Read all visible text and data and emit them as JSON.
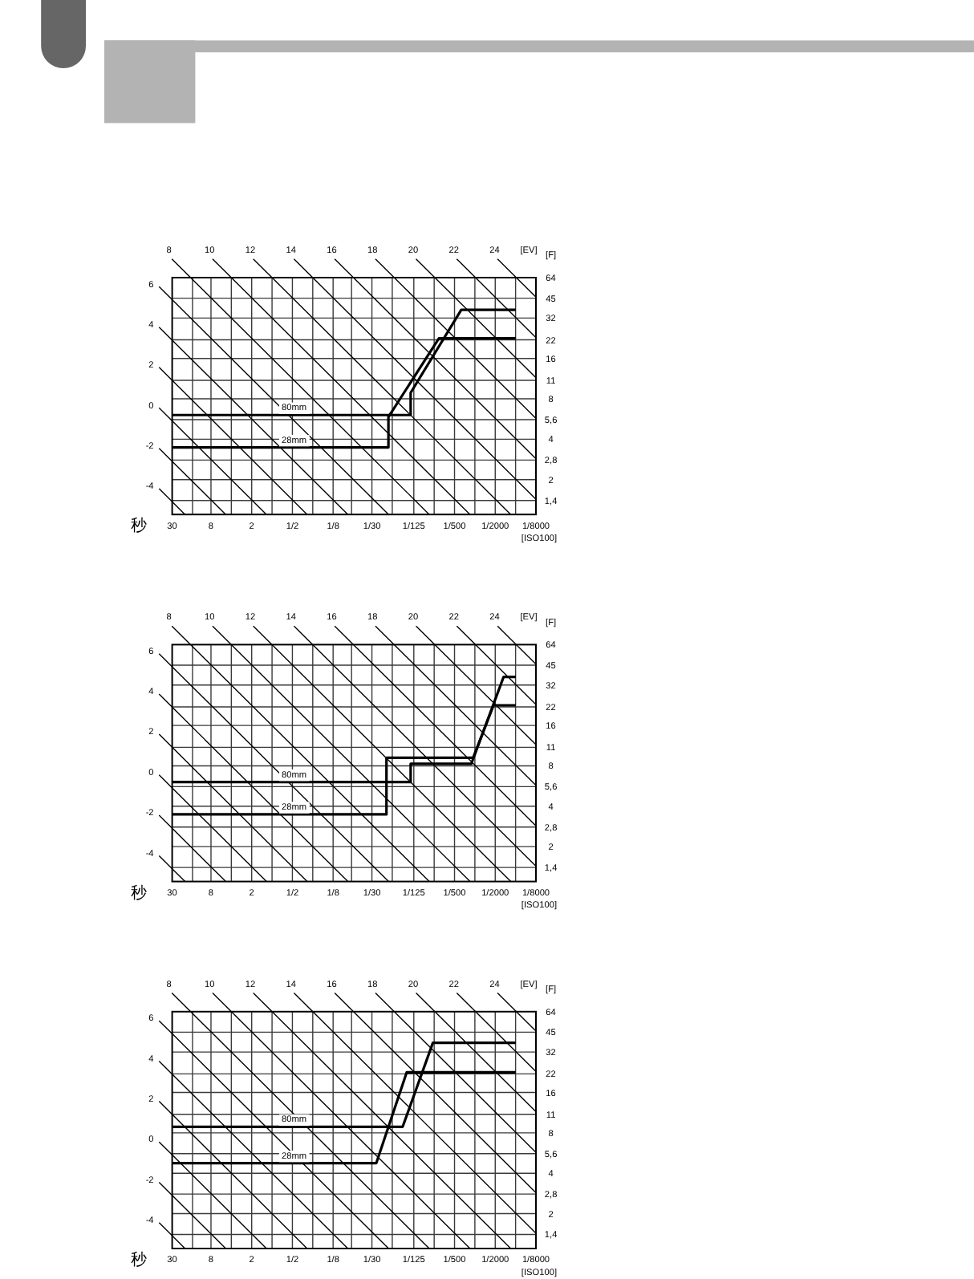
{
  "chart_data": [
    {
      "type": "line",
      "xlabel": "秒",
      "ylabel": "[F]",
      "annotations": [
        "[EV]",
        "[ISO100]"
      ],
      "log": "xy",
      "xlim": [
        30,
        0.000125
      ],
      "xticks": [
        30,
        {
          "value": 15,
          "label": null
        },
        8,
        {
          "value": 4,
          "label": null
        },
        2,
        {
          "value": 1,
          "label": null
        },
        {
          "value": 0.5,
          "label": "1/2"
        },
        {
          "value": 0.25,
          "label": null
        },
        {
          "value": 0.125,
          "label": "1/8"
        },
        {
          "value": 0.066667,
          "label": null
        },
        {
          "value": 0.033333,
          "label": "1/30"
        },
        {
          "value": 0.016667,
          "label": null
        },
        {
          "value": 0.008,
          "label": "1/125"
        },
        {
          "value": 0.004,
          "label": null
        },
        {
          "value": 0.002,
          "label": "1/500"
        },
        {
          "value": 0.001,
          "label": null
        },
        {
          "value": 0.0005,
          "label": "1/2000"
        },
        {
          "value": 0.00025,
          "label": null
        },
        {
          "value": 0.000125,
          "label": "1/8000"
        }
      ],
      "ylim": [
        1.1,
        64
      ],
      "yticks": [
        {
          "value": 1.4,
          "label": "1,4"
        },
        2,
        {
          "value": 2.8,
          "label": "2,8"
        },
        4,
        {
          "value": 5.6,
          "label": "5,6"
        },
        8,
        11,
        16,
        22,
        32,
        45,
        64
      ],
      "grid": true,
      "series": [
        {
          "name": "-4",
          "color": "#000000",
          "x": [
            30,
            19.4
          ],
          "values": [
            1.37,
            1.1
          ]
        },
        {
          "name": "-2",
          "color": "#000000",
          "x": [
            30,
            4.84
          ],
          "values": [
            2.74,
            1.1
          ]
        },
        {
          "name": "0",
          "color": "#000000",
          "x": [
            30,
            1.21
          ],
          "values": [
            5.48,
            1.1
          ]
        },
        {
          "name": "2",
          "color": "#000000",
          "x": [
            30,
            0.303
          ],
          "values": [
            11.0,
            1.1
          ]
        },
        {
          "name": "4",
          "color": "#000000",
          "x": [
            30,
            0.0756
          ],
          "values": [
            21.9,
            1.1
          ]
        },
        {
          "name": "6",
          "color": "#000000",
          "x": [
            30,
            0.0189
          ],
          "values": [
            43.8,
            1.1
          ]
        },
        {
          "name": "8",
          "color": "#000000",
          "x": [
            16,
            0.00473
          ],
          "values": [
            64,
            1.1
          ]
        },
        {
          "name": "10",
          "color": "#000000",
          "x": [
            4,
            0.00118
          ],
          "values": [
            64,
            1.1
          ]
        },
        {
          "name": "12",
          "color": "#000000",
          "x": [
            1,
            0.000295
          ],
          "values": [
            64,
            1.1
          ]
        },
        {
          "name": "14",
          "color": "#000000",
          "x": [
            0.25,
            0.000125
          ],
          "values": [
            64,
            1.43
          ]
        },
        {
          "name": "16",
          "color": "#000000",
          "x": [
            0.0625,
            0.000125
          ],
          "values": [
            64,
            2.86
          ]
        },
        {
          "name": "18",
          "color": "#000000",
          "x": [
            0.0156,
            0.000125
          ],
          "values": [
            64,
            5.72
          ]
        },
        {
          "name": "20",
          "color": "#000000",
          "x": [
            0.00391,
            0.000125
          ],
          "values": [
            64,
            11.5
          ]
        },
        {
          "name": "22",
          "color": "#000000",
          "x": [
            0.000977,
            0.000125
          ],
          "values": [
            64,
            22.9
          ]
        },
        {
          "name": "24",
          "color": "#000000",
          "x": [
            0.000244,
            0.000125
          ],
          "values": [
            64,
            45.8
          ]
        },
        {
          "name": "80mm",
          "color": "#000000",
          "x": [
            30,
            0.00891,
            0.00891,
            0.00159,
            0.000249
          ],
          "values": [
            6.06,
            6.06,
            8.88,
            36.8,
            36.8
          ]
        },
        {
          "name": "28mm",
          "color": "#000000",
          "x": [
            30,
            0.019,
            0.019,
            0.0034,
            0.000249
          ],
          "values": [
            3.48,
            3.48,
            5.86,
            22.6,
            22.6
          ]
        }
      ]
    },
    {
      "type": "line",
      "xlabel": "秒",
      "ylabel": "[F]",
      "annotations": [
        "[EV]",
        "[ISO100]"
      ],
      "log": "xy",
      "xlim": [
        30,
        0.000125
      ],
      "xticks": [
        30,
        {
          "value": 15,
          "label": null
        },
        8,
        {
          "value": 4,
          "label": null
        },
        2,
        {
          "value": 1,
          "label": null
        },
        {
          "value": 0.5,
          "label": "1/2"
        },
        {
          "value": 0.25,
          "label": null
        },
        {
          "value": 0.125,
          "label": "1/8"
        },
        {
          "value": 0.066667,
          "label": null
        },
        {
          "value": 0.033333,
          "label": "1/30"
        },
        {
          "value": 0.016667,
          "label": null
        },
        {
          "value": 0.008,
          "label": "1/125"
        },
        {
          "value": 0.004,
          "label": null
        },
        {
          "value": 0.002,
          "label": "1/500"
        },
        {
          "value": 0.001,
          "label": null
        },
        {
          "value": 0.0005,
          "label": "1/2000"
        },
        {
          "value": 0.00025,
          "label": null
        },
        {
          "value": 0.000125,
          "label": "1/8000"
        }
      ],
      "ylim": [
        1.1,
        64
      ],
      "yticks": [
        {
          "value": 1.4,
          "label": "1,4"
        },
        2,
        {
          "value": 2.8,
          "label": "2,8"
        },
        4,
        {
          "value": 5.6,
          "label": "5,6"
        },
        8,
        11,
        16,
        22,
        32,
        45,
        64
      ],
      "grid": true,
      "series": [
        {
          "name": "-4",
          "color": "#000000",
          "x": [
            30,
            19.4
          ],
          "values": [
            1.37,
            1.1
          ]
        },
        {
          "name": "-2",
          "color": "#000000",
          "x": [
            30,
            4.84
          ],
          "values": [
            2.74,
            1.1
          ]
        },
        {
          "name": "0",
          "color": "#000000",
          "x": [
            30,
            1.21
          ],
          "values": [
            5.48,
            1.1
          ]
        },
        {
          "name": "2",
          "color": "#000000",
          "x": [
            30,
            0.303
          ],
          "values": [
            11.0,
            1.1
          ]
        },
        {
          "name": "4",
          "color": "#000000",
          "x": [
            30,
            0.0756
          ],
          "values": [
            21.9,
            1.1
          ]
        },
        {
          "name": "6",
          "color": "#000000",
          "x": [
            30,
            0.0189
          ],
          "values": [
            43.8,
            1.1
          ]
        },
        {
          "name": "8",
          "color": "#000000",
          "x": [
            16,
            0.00473
          ],
          "values": [
            64,
            1.1
          ]
        },
        {
          "name": "10",
          "color": "#000000",
          "x": [
            4,
            0.00118
          ],
          "values": [
            64,
            1.1
          ]
        },
        {
          "name": "12",
          "color": "#000000",
          "x": [
            1,
            0.000295
          ],
          "values": [
            64,
            1.1
          ]
        },
        {
          "name": "14",
          "color": "#000000",
          "x": [
            0.25,
            0.000125
          ],
          "values": [
            64,
            1.43
          ]
        },
        {
          "name": "16",
          "color": "#000000",
          "x": [
            0.0625,
            0.000125
          ],
          "values": [
            64,
            2.86
          ]
        },
        {
          "name": "18",
          "color": "#000000",
          "x": [
            0.0156,
            0.000125
          ],
          "values": [
            64,
            5.72
          ]
        },
        {
          "name": "20",
          "color": "#000000",
          "x": [
            0.00391,
            0.000125
          ],
          "values": [
            64,
            11.5
          ]
        },
        {
          "name": "22",
          "color": "#000000",
          "x": [
            0.000977,
            0.000125
          ],
          "values": [
            64,
            22.9
          ]
        },
        {
          "name": "24",
          "color": "#000000",
          "x": [
            0.000244,
            0.000125
          ],
          "values": [
            64,
            45.8
          ]
        },
        {
          "name": "80mm",
          "color": "#000000",
          "x": [
            30,
            0.00891,
            0.00891,
            0.00113,
            0.000376,
            0.000249
          ],
          "values": [
            6.06,
            6.06,
            8.28,
            8.28,
            36.8,
            36.8
          ]
        },
        {
          "name": "28mm",
          "color": "#000000",
          "x": [
            30,
            0.0203,
            0.0203,
            0.00106,
            0.00053,
            0.000249
          ],
          "values": [
            3.48,
            3.48,
            9.19,
            9.19,
            22.6,
            22.6
          ]
        }
      ]
    },
    {
      "type": "line",
      "xlabel": "秒",
      "ylabel": "[F]",
      "annotations": [
        "[EV]",
        "[ISO100]"
      ],
      "log": "xy",
      "xlim": [
        30,
        0.000125
      ],
      "xticks": [
        30,
        {
          "value": 15,
          "label": null
        },
        8,
        {
          "value": 4,
          "label": null
        },
        2,
        {
          "value": 1,
          "label": null
        },
        {
          "value": 0.5,
          "label": "1/2"
        },
        {
          "value": 0.25,
          "label": null
        },
        {
          "value": 0.125,
          "label": "1/8"
        },
        {
          "value": 0.066667,
          "label": null
        },
        {
          "value": 0.033333,
          "label": "1/30"
        },
        {
          "value": 0.016667,
          "label": null
        },
        {
          "value": 0.008,
          "label": "1/125"
        },
        {
          "value": 0.004,
          "label": null
        },
        {
          "value": 0.002,
          "label": "1/500"
        },
        {
          "value": 0.001,
          "label": null
        },
        {
          "value": 0.0005,
          "label": "1/2000"
        },
        {
          "value": 0.00025,
          "label": null
        },
        {
          "value": 0.000125,
          "label": "1/8000"
        }
      ],
      "ylim": [
        1.1,
        64
      ],
      "yticks": [
        {
          "value": 1.4,
          "label": "1,4"
        },
        2,
        {
          "value": 2.8,
          "label": "2,8"
        },
        4,
        {
          "value": 5.6,
          "label": "5,6"
        },
        8,
        11,
        16,
        22,
        32,
        45,
        64
      ],
      "grid": true,
      "series": [
        {
          "name": "-4",
          "color": "#000000",
          "x": [
            30,
            19.4
          ],
          "values": [
            1.37,
            1.1
          ]
        },
        {
          "name": "-2",
          "color": "#000000",
          "x": [
            30,
            4.84
          ],
          "values": [
            2.74,
            1.1
          ]
        },
        {
          "name": "0",
          "color": "#000000",
          "x": [
            30,
            1.21
          ],
          "values": [
            5.48,
            1.1
          ]
        },
        {
          "name": "2",
          "color": "#000000",
          "x": [
            30,
            0.303
          ],
          "values": [
            11.0,
            1.1
          ]
        },
        {
          "name": "4",
          "color": "#000000",
          "x": [
            30,
            0.0756
          ],
          "values": [
            21.9,
            1.1
          ]
        },
        {
          "name": "6",
          "color": "#000000",
          "x": [
            30,
            0.0189
          ],
          "values": [
            43.8,
            1.1
          ]
        },
        {
          "name": "8",
          "color": "#000000",
          "x": [
            16,
            0.00473
          ],
          "values": [
            64,
            1.1
          ]
        },
        {
          "name": "10",
          "color": "#000000",
          "x": [
            4,
            0.00118
          ],
          "values": [
            64,
            1.1
          ]
        },
        {
          "name": "12",
          "color": "#000000",
          "x": [
            1,
            0.000295
          ],
          "values": [
            64,
            1.1
          ]
        },
        {
          "name": "14",
          "color": "#000000",
          "x": [
            0.25,
            0.000125
          ],
          "values": [
            64,
            1.43
          ]
        },
        {
          "name": "16",
          "color": "#000000",
          "x": [
            0.0625,
            0.000125
          ],
          "values": [
            64,
            2.86
          ]
        },
        {
          "name": "18",
          "color": "#000000",
          "x": [
            0.0156,
            0.000125
          ],
          "values": [
            64,
            5.72
          ]
        },
        {
          "name": "20",
          "color": "#000000",
          "x": [
            0.00391,
            0.000125
          ],
          "values": [
            64,
            11.5
          ]
        },
        {
          "name": "22",
          "color": "#000000",
          "x": [
            0.000977,
            0.000125
          ],
          "values": [
            64,
            22.9
          ]
        },
        {
          "name": "24",
          "color": "#000000",
          "x": [
            0.000244,
            0.000125
          ],
          "values": [
            64,
            45.8
          ]
        },
        {
          "name": "80mm",
          "color": "#000000",
          "x": [
            30,
            0.0117,
            0.00418,
            0.000249
          ],
          "values": [
            8.88,
            8.88,
            37.5,
            37.5
          ]
        },
        {
          "name": "28mm",
          "color": "#000000",
          "x": [
            30,
            0.0287,
            0.0102,
            0.000249
          ],
          "values": [
            4.76,
            4.76,
            22.6,
            22.6
          ]
        }
      ]
    }
  ]
}
